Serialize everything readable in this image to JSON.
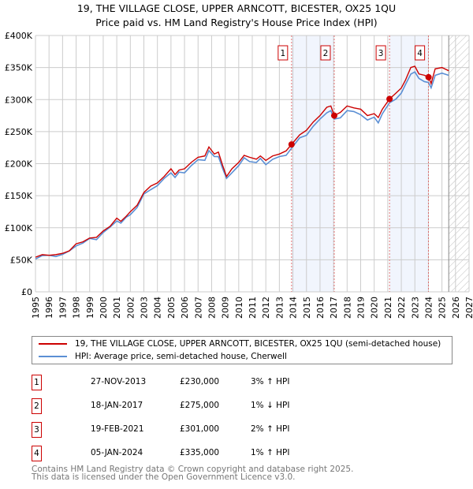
{
  "title_line1": "19, THE VILLAGE CLOSE, UPPER ARNCOTT, BICESTER, OX25 1QU",
  "title_line2": "Price paid vs. HM Land Registry's House Price Index (HPI)",
  "legend": [
    {
      "label": "19, THE VILLAGE CLOSE, UPPER ARNCOTT, BICESTER, OX25 1QU (semi-detached house)",
      "color": "#cc0000"
    },
    {
      "label": "HPI: Average price, semi-detached house, Cherwell",
      "color": "#5b8fd4"
    }
  ],
  "transactions": [
    {
      "num": "1",
      "date": "27-NOV-2013",
      "price": "£230,000",
      "hpi": "3% ↑ HPI"
    },
    {
      "num": "2",
      "date": "18-JAN-2017",
      "price": "£275,000",
      "hpi": "1% ↓ HPI"
    },
    {
      "num": "3",
      "date": "19-FEB-2021",
      "price": "£301,000",
      "hpi": "2% ↑ HPI"
    },
    {
      "num": "4",
      "date": "05-JAN-2024",
      "price": "£335,000",
      "hpi": "1% ↑ HPI"
    }
  ],
  "footer_line1": "Contains HM Land Registry data © Crown copyright and database right 2025.",
  "footer_line2": "This data is licensed under the Open Government Licence v3.0.",
  "chart_data": {
    "type": "line",
    "xlim": [
      1995,
      2027
    ],
    "ylim": [
      0,
      400000
    ],
    "yticks": [
      0,
      50000,
      100000,
      150000,
      200000,
      250000,
      300000,
      350000,
      400000
    ],
    "ytick_labels": [
      "£0",
      "£50K",
      "£100K",
      "£150K",
      "£200K",
      "£250K",
      "£300K",
      "£350K",
      "£400K"
    ],
    "xticks": [
      1995,
      1996,
      1997,
      1998,
      1999,
      2000,
      2001,
      2002,
      2003,
      2004,
      2005,
      2006,
      2007,
      2008,
      2009,
      2010,
      2011,
      2012,
      2013,
      2014,
      2015,
      2016,
      2017,
      2018,
      2019,
      2020,
      2021,
      2022,
      2023,
      2024,
      2025,
      2026,
      2027
    ],
    "shaded_periods": [
      [
        2013.9,
        2017.05
      ],
      [
        2021.13,
        2024.01
      ]
    ],
    "forecast_from": 2025.5,
    "sales": [
      {
        "label": "1",
        "x": 2013.9,
        "y": 230000
      },
      {
        "label": "2",
        "x": 2017.05,
        "y": 275000
      },
      {
        "label": "3",
        "x": 2021.13,
        "y": 301000
      },
      {
        "label": "4",
        "x": 2024.01,
        "y": 335000
      }
    ],
    "series": [
      {
        "name": "19, THE VILLAGE CLOSE, UPPER ARNCOTT, BICESTER, OX25 1QU (semi-detached house)",
        "color": "#cc0000",
        "x": [
          1995,
          1995.5,
          1996,
          1996.5,
          1997,
          1997.5,
          1998,
          1998.5,
          1999,
          1999.5,
          2000,
          2000.5,
          2001,
          2001.3,
          2001.7,
          2002,
          2002.5,
          2003,
          2003.5,
          2004,
          2004.5,
          2005,
          2005.3,
          2005.6,
          2006,
          2006.5,
          2007,
          2007.5,
          2007.8,
          2008.2,
          2008.5,
          2008.8,
          2009.1,
          2009.5,
          2010,
          2010.4,
          2010.8,
          2011.3,
          2011.6,
          2012,
          2012.5,
          2013,
          2013.5,
          2013.9,
          2014.5,
          2015,
          2015.5,
          2016,
          2016.5,
          2016.8,
          2017.05,
          2017.5,
          2018,
          2018.5,
          2019,
          2019.5,
          2020,
          2020.3,
          2020.6,
          2021.13,
          2021.6,
          2022,
          2022.3,
          2022.7,
          2023,
          2023.3,
          2023.7,
          2024.01,
          2024.2,
          2024.5,
          2025,
          2025.5
        ],
        "y": [
          54000,
          58000,
          57000,
          58000,
          60000,
          64000,
          75000,
          78000,
          84000,
          85000,
          95000,
          102000,
          115000,
          110000,
          118000,
          125000,
          135000,
          155000,
          165000,
          170000,
          180000,
          192000,
          183000,
          190000,
          192000,
          202000,
          210000,
          212000,
          226000,
          215000,
          218000,
          198000,
          180000,
          192000,
          202000,
          213000,
          210000,
          207000,
          212000,
          205000,
          212000,
          215000,
          220000,
          230000,
          245000,
          252000,
          265000,
          275000,
          288000,
          290000,
          275000,
          280000,
          290000,
          287000,
          285000,
          275000,
          278000,
          272000,
          285000,
          301000,
          310000,
          318000,
          330000,
          350000,
          352000,
          340000,
          338000,
          335000,
          325000,
          348000,
          350000,
          345000
        ]
      },
      {
        "name": "HPI: Average price, semi-detached house, Cherwell",
        "color": "#5b8fd4",
        "relative_to_first_series": 0.975
      }
    ]
  }
}
